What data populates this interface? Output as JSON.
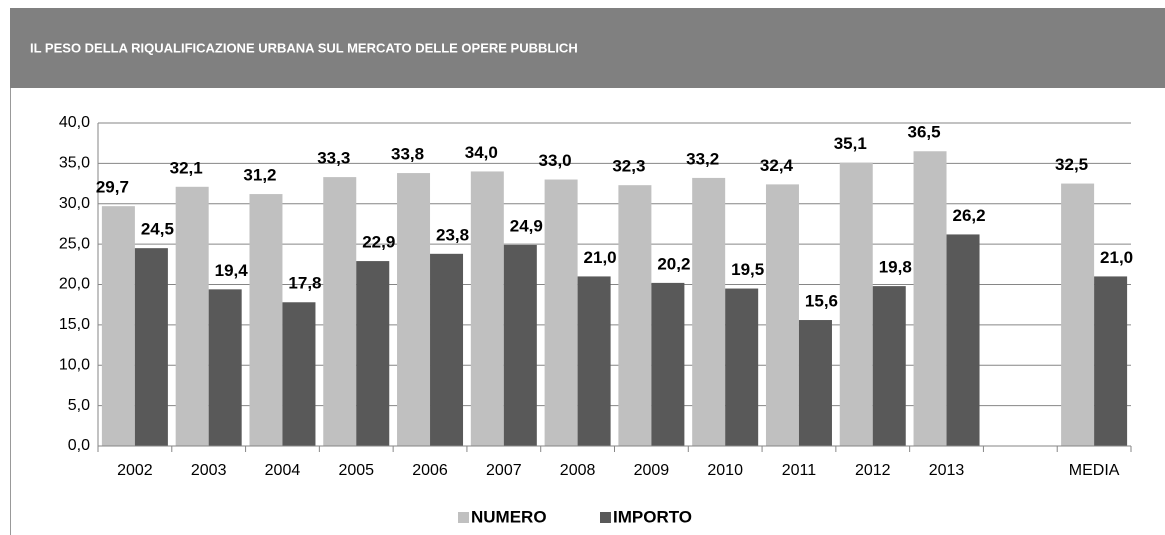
{
  "chart_data": {
    "type": "bar",
    "title": "IL PESO DELLA RIQUALIFICAZIONE URBANA SUL MERCATO DELLE OPERE PUBBLICH",
    "categories": [
      "2002",
      "2003",
      "2004",
      "2005",
      "2006",
      "2007",
      "2008",
      "2009",
      "2010",
      "2011",
      "2012",
      "2013",
      null,
      "MEDIA"
    ],
    "series": [
      {
        "name": "NUMERO",
        "color": "#c0c0c0",
        "values": [
          29.7,
          32.1,
          31.2,
          33.3,
          33.8,
          34.0,
          33.0,
          32.3,
          33.2,
          32.4,
          35.1,
          36.5,
          null,
          32.5
        ],
        "value_labels": [
          "29,7",
          "32,1",
          "31,2",
          "33,3",
          "33,8",
          "34,0",
          "33,0",
          "32,3",
          "33,2",
          "32,4",
          "35,1",
          "36,5",
          null,
          "32,5"
        ]
      },
      {
        "name": "IMPORTO",
        "color": "#595959",
        "values": [
          24.5,
          19.4,
          17.8,
          22.9,
          23.8,
          24.9,
          21.0,
          20.2,
          19.5,
          15.6,
          19.8,
          26.2,
          null,
          21.0
        ],
        "value_labels": [
          "24,5",
          "19,4",
          "17,8",
          "22,9",
          "23,8",
          "24,9",
          "21,0",
          "20,2",
          "19,5",
          "15,6",
          "19,8",
          "26,2",
          null,
          "21,0"
        ]
      }
    ],
    "ylim": [
      0,
      40
    ],
    "yticks": [
      {
        "value": 0,
        "label": "0,0"
      },
      {
        "value": 5,
        "label": "5,0"
      },
      {
        "value": 10,
        "label": "10,0"
      },
      {
        "value": 15,
        "label": "15,0"
      },
      {
        "value": 20,
        "label": "20,0"
      },
      {
        "value": 25,
        "label": "25,0"
      },
      {
        "value": 30,
        "label": "30,0"
      },
      {
        "value": 35,
        "label": "35,0"
      },
      {
        "value": 40,
        "label": "40,0"
      }
    ],
    "grid": true,
    "legend": "bottom"
  }
}
